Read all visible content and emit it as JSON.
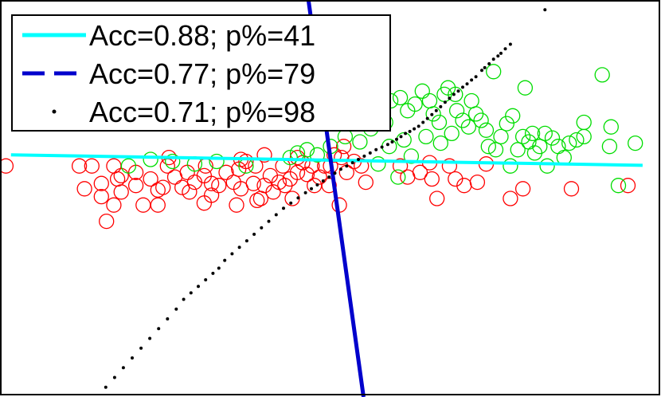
{
  "chart_data": {
    "type": "scatter",
    "title": "",
    "xlabel": "",
    "ylabel": "",
    "xlim": [
      -4.6,
      4.4
    ],
    "ylim": [
      -3.5,
      2.6
    ],
    "grid": false,
    "axes_tick_labels": false,
    "legend_position": "top-left",
    "series": [
      {
        "name": "Acc=0.88; p%=41",
        "kind": "line",
        "style": "solid",
        "color": "#00ffff",
        "points": [
          [
            -4.45,
            0.22
          ],
          [
            4.15,
            0.06
          ]
        ]
      },
      {
        "name": "Acc=0.77; p%=79",
        "kind": "line",
        "style": "dashed",
        "color": "#0000cc",
        "points": [
          [
            -0.4,
            2.6
          ],
          [
            0.35,
            -3.5
          ]
        ]
      },
      {
        "name": "Acc=0.71; p%=98",
        "kind": "dots",
        "color": "#000000",
        "points": [
          [
            2.82,
            2.45
          ],
          [
            2.35,
            1.92
          ],
          [
            2.28,
            1.85
          ],
          [
            2.22,
            1.78
          ],
          [
            2.18,
            1.74
          ],
          [
            2.12,
            1.69
          ],
          [
            2.06,
            1.62
          ],
          [
            2.0,
            1.56
          ],
          [
            1.96,
            1.52
          ],
          [
            1.88,
            1.42
          ],
          [
            1.82,
            1.37
          ],
          [
            1.76,
            1.31
          ],
          [
            1.7,
            1.26
          ],
          [
            1.64,
            1.2
          ],
          [
            1.58,
            1.15
          ],
          [
            1.52,
            1.09
          ],
          [
            1.46,
            1.03
          ],
          [
            1.4,
            0.96
          ],
          [
            1.34,
            0.9
          ],
          [
            1.28,
            0.84
          ],
          [
            1.22,
            0.78
          ],
          [
            1.16,
            0.72
          ],
          [
            1.1,
            0.66
          ],
          [
            1.04,
            0.62
          ],
          [
            0.98,
            0.58
          ],
          [
            0.92,
            0.55
          ],
          [
            0.86,
            0.5
          ],
          [
            0.8,
            0.46
          ],
          [
            0.74,
            0.42
          ],
          [
            0.68,
            0.38
          ],
          [
            0.6,
            0.34
          ],
          [
            0.52,
            0.3
          ],
          [
            0.44,
            0.25
          ],
          [
            0.36,
            0.2
          ],
          [
            0.28,
            0.15
          ],
          [
            0.2,
            0.1
          ],
          [
            0.12,
            0.05
          ],
          [
            0.04,
            0.0
          ],
          [
            -0.04,
            -0.06
          ],
          [
            -0.12,
            -0.12
          ],
          [
            -0.2,
            -0.18
          ],
          [
            -0.28,
            -0.24
          ],
          [
            -0.36,
            -0.3
          ],
          [
            -0.44,
            -0.36
          ],
          [
            -0.54,
            -0.44
          ],
          [
            -0.64,
            -0.52
          ],
          [
            -0.74,
            -0.6
          ],
          [
            -0.84,
            -0.7
          ],
          [
            -0.94,
            -0.8
          ],
          [
            -1.04,
            -0.9
          ],
          [
            -1.14,
            -1.0
          ],
          [
            -1.24,
            -1.1
          ],
          [
            -1.34,
            -1.2
          ],
          [
            -1.44,
            -1.3
          ],
          [
            -1.54,
            -1.4
          ],
          [
            -1.62,
            -1.52
          ],
          [
            -1.7,
            -1.6
          ],
          [
            -1.8,
            -1.7
          ],
          [
            -1.9,
            -1.8
          ],
          [
            -2.0,
            -1.9
          ],
          [
            -2.1,
            -2.0
          ],
          [
            -2.2,
            -2.15
          ],
          [
            -2.32,
            -2.3
          ],
          [
            -2.44,
            -2.45
          ],
          [
            -2.56,
            -2.6
          ],
          [
            -2.68,
            -2.75
          ],
          [
            -2.8,
            -2.9
          ],
          [
            -2.92,
            -3.05
          ],
          [
            -3.04,
            -3.2
          ],
          [
            -3.16,
            -3.35
          ]
        ]
      },
      {
        "name": "",
        "kind": "markers",
        "marker": "circle-open",
        "color": "#ff0000",
        "points": [
          [
            -4.52,
            0.05
          ],
          [
            -3.52,
            0.05
          ],
          [
            -3.35,
            0.05
          ],
          [
            -3.22,
            -0.22
          ],
          [
            -3.0,
            -0.15
          ],
          [
            -3.05,
            0.05
          ],
          [
            -3.22,
            -0.42
          ],
          [
            -3.05,
            -0.55
          ],
          [
            -2.95,
            -0.35
          ],
          [
            -2.65,
            -0.55
          ],
          [
            -2.75,
            -0.25
          ],
          [
            -3.15,
            -0.8
          ],
          [
            -2.95,
            -0.1
          ],
          [
            -2.75,
            -0.05
          ],
          [
            -2.55,
            -0.15
          ],
          [
            -2.45,
            -0.32
          ],
          [
            -2.38,
            -0.28
          ],
          [
            -2.32,
            0.05
          ],
          [
            -2.22,
            -0.12
          ],
          [
            -2.12,
            -0.28
          ],
          [
            -2.05,
            -0.05
          ],
          [
            -2.02,
            -0.35
          ],
          [
            -1.95,
            -0.2
          ],
          [
            -1.82,
            -0.1
          ],
          [
            -1.72,
            -0.22
          ],
          [
            -1.82,
            -0.52
          ],
          [
            -1.72,
            -0.4
          ],
          [
            -1.62,
            -0.25
          ],
          [
            -1.52,
            -0.05
          ],
          [
            -1.42,
            -0.2
          ],
          [
            -1.35,
            0.0
          ],
          [
            -1.32,
            -0.3
          ],
          [
            -1.25,
            0.12
          ],
          [
            -1.15,
            -0.22
          ],
          [
            -1.12,
            0.05
          ],
          [
            -1.05,
            -0.45
          ],
          [
            -1.0,
            -0.25
          ],
          [
            -0.92,
            -0.1
          ],
          [
            -0.88,
            -0.35
          ],
          [
            -0.8,
            -0.2
          ],
          [
            -0.75,
            0.05
          ],
          [
            -0.72,
            -0.25
          ],
          [
            -0.65,
            -0.15
          ],
          [
            -0.62,
            -0.45
          ],
          [
            -0.55,
            0.18
          ],
          [
            -0.48,
            0.1
          ],
          [
            -0.42,
            -0.08
          ],
          [
            -0.35,
            0.05
          ],
          [
            -0.32,
            -0.25
          ],
          [
            -0.25,
            -0.12
          ],
          [
            -0.18,
            0.05
          ],
          [
            -0.12,
            -0.25
          ],
          [
            -0.05,
            0.22
          ],
          [
            0.05,
            0.18
          ],
          [
            0.08,
            0.35
          ],
          [
            0.12,
            -0.05
          ],
          [
            0.22,
            0.12
          ],
          [
            0.32,
            0.05
          ],
          [
            0.38,
            -0.2
          ],
          [
            0.02,
            -0.55
          ],
          [
            -0.1,
            0.05
          ],
          [
            -0.55,
            -0.05
          ],
          [
            -1.0,
            0.22
          ],
          [
            -1.32,
            0.15
          ],
          [
            -1.8,
            0.05
          ],
          [
            -2.3,
            0.18
          ],
          [
            0.85,
            0.05
          ],
          [
            0.95,
            -0.12
          ],
          [
            1.12,
            -0.05
          ],
          [
            1.25,
            0.1
          ],
          [
            1.28,
            -0.15
          ],
          [
            1.35,
            -0.45
          ],
          [
            1.52,
            0.05
          ],
          [
            1.6,
            -0.15
          ],
          [
            1.72,
            -0.25
          ],
          [
            1.9,
            -0.2
          ],
          [
            2.02,
            0.08
          ],
          [
            2.35,
            -0.45
          ],
          [
            2.52,
            -0.3
          ],
          [
            3.18,
            -0.3
          ],
          [
            3.95,
            -0.25
          ],
          [
            -3.45,
            -0.3
          ],
          [
            -2.45,
            -0.55
          ],
          [
            -1.1,
            -0.48
          ],
          [
            -1.38,
            -0.55
          ]
        ]
      },
      {
        "name": "",
        "kind": "markers",
        "marker": "circle-open",
        "color": "#00dd00",
        "points": [
          [
            -2.85,
            0.05
          ],
          [
            -2.55,
            0.15
          ],
          [
            -2.25,
            0.12
          ],
          [
            -1.95,
            0.08
          ],
          [
            -1.65,
            0.12
          ],
          [
            -1.25,
            0.05
          ],
          [
            -0.65,
            0.18
          ],
          [
            -0.55,
            0.25
          ],
          [
            -0.42,
            0.3
          ],
          [
            -0.28,
            0.22
          ],
          [
            -0.1,
            0.35
          ],
          [
            0.1,
            0.5
          ],
          [
            0.15,
            0.8
          ],
          [
            0.22,
            0.92
          ],
          [
            0.28,
            1.05
          ],
          [
            0.4,
            1.1
          ],
          [
            0.5,
            1.28
          ],
          [
            0.62,
            1.25
          ],
          [
            0.72,
            1.05
          ],
          [
            0.85,
            1.1
          ],
          [
            0.95,
            0.9
          ],
          [
            1.05,
            1.0
          ],
          [
            1.15,
            1.2
          ],
          [
            1.25,
            1.05
          ],
          [
            1.3,
            0.85
          ],
          [
            1.38,
            0.72
          ],
          [
            1.45,
            1.15
          ],
          [
            1.5,
            1.25
          ],
          [
            1.6,
            1.15
          ],
          [
            1.62,
            0.9
          ],
          [
            1.7,
            0.75
          ],
          [
            1.78,
            0.65
          ],
          [
            1.82,
            1.05
          ],
          [
            1.88,
            0.85
          ],
          [
            1.95,
            0.75
          ],
          [
            2.02,
            0.6
          ],
          [
            2.05,
            0.35
          ],
          [
            2.15,
            0.3
          ],
          [
            2.22,
            0.5
          ],
          [
            2.3,
            0.7
          ],
          [
            2.38,
            0.82
          ],
          [
            2.45,
            0.3
          ],
          [
            2.52,
            0.5
          ],
          [
            2.6,
            0.42
          ],
          [
            2.68,
            0.25
          ],
          [
            2.75,
            0.35
          ],
          [
            2.82,
            0.55
          ],
          [
            2.92,
            0.48
          ],
          [
            3.0,
            0.35
          ],
          [
            3.08,
            0.18
          ],
          [
            3.15,
            0.4
          ],
          [
            3.25,
            0.45
          ],
          [
            2.12,
            1.5
          ],
          [
            2.55,
            1.25
          ],
          [
            3.6,
            1.45
          ],
          [
            3.35,
            0.5
          ],
          [
            3.35,
            0.72
          ],
          [
            3.72,
            0.65
          ],
          [
            3.7,
            0.35
          ],
          [
            4.05,
            0.4
          ],
          [
            3.82,
            -0.25
          ],
          [
            0.55,
            0.08
          ],
          [
            0.7,
            0.35
          ],
          [
            0.9,
            0.45
          ],
          [
            1.0,
            0.2
          ],
          [
            0.45,
            0.62
          ],
          [
            0.3,
            0.42
          ],
          [
            0.65,
            0.72
          ],
          [
            0.82,
            -0.12
          ],
          [
            1.4,
            0.4
          ],
          [
            1.55,
            0.55
          ],
          [
            1.2,
            0.5
          ],
          [
            2.35,
            0.05
          ],
          [
            2.65,
            0.55
          ],
          [
            2.85,
            0.05
          ]
        ]
      }
    ]
  }
}
